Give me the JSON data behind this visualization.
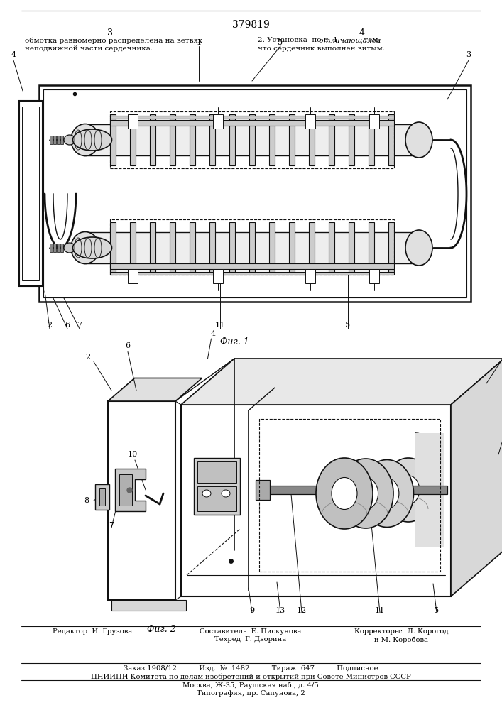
{
  "patent_number": "379819",
  "page_left": "3",
  "page_right": "4",
  "text_left_1": "обмотка равномерно распределена на ветвях",
  "text_left_2": "неподвижной части сердечника.",
  "text_right_1": "2. Установка  по п. 1,",
  "text_right_italic": " отличающаяся",
  "text_right_2": "  тем,",
  "text_right_3": "что сердечник выполнен витым.",
  "fig1_label": "Фиг. 1",
  "fig2_label": "Фиг. 2",
  "footer_editor": "Редактор  И. Грузова",
  "footer_comp": "Составитель  Е. Пискунова",
  "footer_corr": "Корректоры:  Л. Корогод",
  "footer_tech": "Техред  Г. Дворина",
  "footer_corr2": "и М. Коробова",
  "footer_box1": "Заказ 1908/12          Изд.  №  1482          Тираж  647          Подписное",
  "footer_box2": "ЦНИИПИ Комитета по делам изобретений и открытий при Совете Министров СССР",
  "footer_box3": "Москва, Ж-35, Раушская наб., д. 4/5",
  "footer_last": "Типография, пр. Сапунова, 2",
  "lc": "#111111",
  "bg": "#ffffff"
}
